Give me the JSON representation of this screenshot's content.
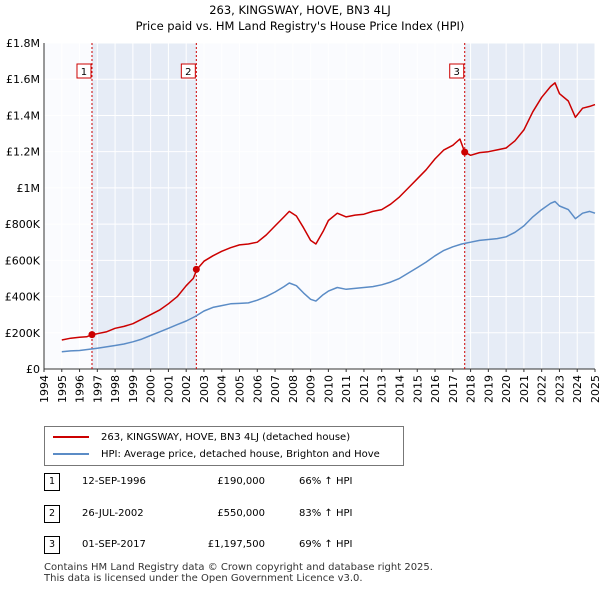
{
  "title_line1": "263, KINGSWAY, HOVE, BN3 4LJ",
  "title_line2": "Price paid vs. HM Land Registry's House Price Index (HPI)",
  "chart_data": {
    "type": "line",
    "title": "263, KINGSWAY, HOVE, BN3 4LJ — Price paid vs. HM Land Registry's House Price Index (HPI)",
    "xlim": [
      1994,
      2025
    ],
    "ylim": [
      0,
      1800000
    ],
    "x_ticks": [
      "1994",
      "1995",
      "1996",
      "1997",
      "1998",
      "1999",
      "2000",
      "2001",
      "2002",
      "2003",
      "2004",
      "2005",
      "2006",
      "2007",
      "2008",
      "2009",
      "2010",
      "2011",
      "2012",
      "2013",
      "2014",
      "2015",
      "2016",
      "2017",
      "2018",
      "2019",
      "2020",
      "2021",
      "2022",
      "2023",
      "2024",
      "2025"
    ],
    "y_ticks": [
      {
        "value": 0,
        "label": "£0"
      },
      {
        "value": 200000,
        "label": "£200K"
      },
      {
        "value": 400000,
        "label": "£400K"
      },
      {
        "value": 600000,
        "label": "£600K"
      },
      {
        "value": 800000,
        "label": "£800K"
      },
      {
        "value": 1000000,
        "label": "£1M"
      },
      {
        "value": 1200000,
        "label": "£1.2M"
      },
      {
        "value": 1400000,
        "label": "£1.4M"
      },
      {
        "value": 1600000,
        "label": "£1.6M"
      },
      {
        "value": 1800000,
        "label": "£1.8M"
      }
    ],
    "series": [
      {
        "name": "263, KINGSWAY, HOVE, BN3 4LJ (detached house)",
        "color": "#cc0000",
        "points": [
          [
            1995.0,
            160000
          ],
          [
            1995.5,
            170000
          ],
          [
            1996.0,
            175000
          ],
          [
            1996.4,
            178000
          ],
          [
            1996.7,
            190000
          ],
          [
            1997.0,
            195000
          ],
          [
            1997.5,
            205000
          ],
          [
            1998.0,
            225000
          ],
          [
            1998.5,
            235000
          ],
          [
            1999.0,
            250000
          ],
          [
            1999.5,
            275000
          ],
          [
            2000.0,
            300000
          ],
          [
            2000.5,
            325000
          ],
          [
            2001.0,
            360000
          ],
          [
            2001.5,
            400000
          ],
          [
            2002.0,
            460000
          ],
          [
            2002.4,
            500000
          ],
          [
            2002.6,
            550000
          ],
          [
            2003.0,
            595000
          ],
          [
            2003.5,
            625000
          ],
          [
            2004.0,
            650000
          ],
          [
            2004.5,
            670000
          ],
          [
            2005.0,
            685000
          ],
          [
            2005.5,
            690000
          ],
          [
            2006.0,
            700000
          ],
          [
            2006.5,
            740000
          ],
          [
            2007.0,
            790000
          ],
          [
            2007.5,
            840000
          ],
          [
            2007.8,
            870000
          ],
          [
            2008.2,
            845000
          ],
          [
            2008.6,
            780000
          ],
          [
            2009.0,
            710000
          ],
          [
            2009.3,
            690000
          ],
          [
            2009.7,
            760000
          ],
          [
            2010.0,
            820000
          ],
          [
            2010.5,
            860000
          ],
          [
            2011.0,
            840000
          ],
          [
            2011.5,
            850000
          ],
          [
            2012.0,
            855000
          ],
          [
            2012.5,
            870000
          ],
          [
            2013.0,
            880000
          ],
          [
            2013.5,
            910000
          ],
          [
            2014.0,
            950000
          ],
          [
            2014.5,
            1000000
          ],
          [
            2015.0,
            1050000
          ],
          [
            2015.5,
            1100000
          ],
          [
            2016.0,
            1160000
          ],
          [
            2016.5,
            1210000
          ],
          [
            2017.0,
            1235000
          ],
          [
            2017.4,
            1270000
          ],
          [
            2017.67,
            1197500
          ],
          [
            2018.0,
            1180000
          ],
          [
            2018.5,
            1195000
          ],
          [
            2019.0,
            1200000
          ],
          [
            2019.5,
            1210000
          ],
          [
            2020.0,
            1220000
          ],
          [
            2020.5,
            1260000
          ],
          [
            2021.0,
            1320000
          ],
          [
            2021.5,
            1420000
          ],
          [
            2022.0,
            1500000
          ],
          [
            2022.5,
            1560000
          ],
          [
            2022.75,
            1580000
          ],
          [
            2023.0,
            1520000
          ],
          [
            2023.5,
            1480000
          ],
          [
            2023.9,
            1390000
          ],
          [
            2024.3,
            1440000
          ],
          [
            2024.7,
            1450000
          ],
          [
            2025.0,
            1460000
          ]
        ]
      },
      {
        "name": "HPI: Average price, detached house, Brighton and Hove",
        "color": "#5b8cc6",
        "points": [
          [
            1995.0,
            95000
          ],
          [
            1995.5,
            100000
          ],
          [
            1996.0,
            102000
          ],
          [
            1996.5,
            108000
          ],
          [
            1997.0,
            115000
          ],
          [
            1997.5,
            122000
          ],
          [
            1998.0,
            130000
          ],
          [
            1998.5,
            138000
          ],
          [
            1999.0,
            150000
          ],
          [
            1999.5,
            165000
          ],
          [
            2000.0,
            185000
          ],
          [
            2000.5,
            205000
          ],
          [
            2001.0,
            225000
          ],
          [
            2001.5,
            245000
          ],
          [
            2002.0,
            265000
          ],
          [
            2002.5,
            290000
          ],
          [
            2003.0,
            320000
          ],
          [
            2003.5,
            340000
          ],
          [
            2004.0,
            350000
          ],
          [
            2004.5,
            360000
          ],
          [
            2005.0,
            362000
          ],
          [
            2005.5,
            365000
          ],
          [
            2006.0,
            380000
          ],
          [
            2006.5,
            400000
          ],
          [
            2007.0,
            425000
          ],
          [
            2007.5,
            455000
          ],
          [
            2007.8,
            475000
          ],
          [
            2008.2,
            460000
          ],
          [
            2008.6,
            420000
          ],
          [
            2009.0,
            385000
          ],
          [
            2009.3,
            375000
          ],
          [
            2009.7,
            410000
          ],
          [
            2010.0,
            430000
          ],
          [
            2010.5,
            450000
          ],
          [
            2011.0,
            440000
          ],
          [
            2011.5,
            445000
          ],
          [
            2012.0,
            450000
          ],
          [
            2012.5,
            455000
          ],
          [
            2013.0,
            465000
          ],
          [
            2013.5,
            480000
          ],
          [
            2014.0,
            500000
          ],
          [
            2014.5,
            530000
          ],
          [
            2015.0,
            560000
          ],
          [
            2015.5,
            590000
          ],
          [
            2016.0,
            625000
          ],
          [
            2016.5,
            655000
          ],
          [
            2017.0,
            675000
          ],
          [
            2017.5,
            690000
          ],
          [
            2018.0,
            700000
          ],
          [
            2018.5,
            710000
          ],
          [
            2019.0,
            715000
          ],
          [
            2019.5,
            720000
          ],
          [
            2020.0,
            730000
          ],
          [
            2020.5,
            755000
          ],
          [
            2021.0,
            790000
          ],
          [
            2021.5,
            840000
          ],
          [
            2022.0,
            880000
          ],
          [
            2022.5,
            915000
          ],
          [
            2022.75,
            925000
          ],
          [
            2023.0,
            900000
          ],
          [
            2023.5,
            880000
          ],
          [
            2023.9,
            830000
          ],
          [
            2024.3,
            860000
          ],
          [
            2024.7,
            870000
          ],
          [
            2025.0,
            860000
          ]
        ]
      }
    ],
    "sale_markers": [
      {
        "label": "1",
        "x": 1996.7,
        "y": 190000
      },
      {
        "label": "2",
        "x": 2002.57,
        "y": 550000
      },
      {
        "label": "3",
        "x": 2017.67,
        "y": 1197500
      }
    ]
  },
  "legend": {
    "property_label": "263, KINGSWAY, HOVE, BN3 4LJ (detached house)",
    "hpi_label": "HPI: Average price, detached house, Brighton and Hove",
    "property_color": "#cc0000",
    "hpi_color": "#5b8cc6"
  },
  "sales": [
    {
      "num": "1",
      "date": "12-SEP-1996",
      "price": "£190,000",
      "hpi": "66% ↑ HPI"
    },
    {
      "num": "2",
      "date": "26-JUL-2002",
      "price": "£550,000",
      "hpi": "83% ↑ HPI"
    },
    {
      "num": "3",
      "date": "01-SEP-2017",
      "price": "£1,197,500",
      "hpi": "69% ↑ HPI"
    }
  ],
  "footer_line1": "Contains HM Land Registry data © Crown copyright and database right 2025.",
  "footer_line2": "This data is licensed under the Open Government Licence v3.0."
}
